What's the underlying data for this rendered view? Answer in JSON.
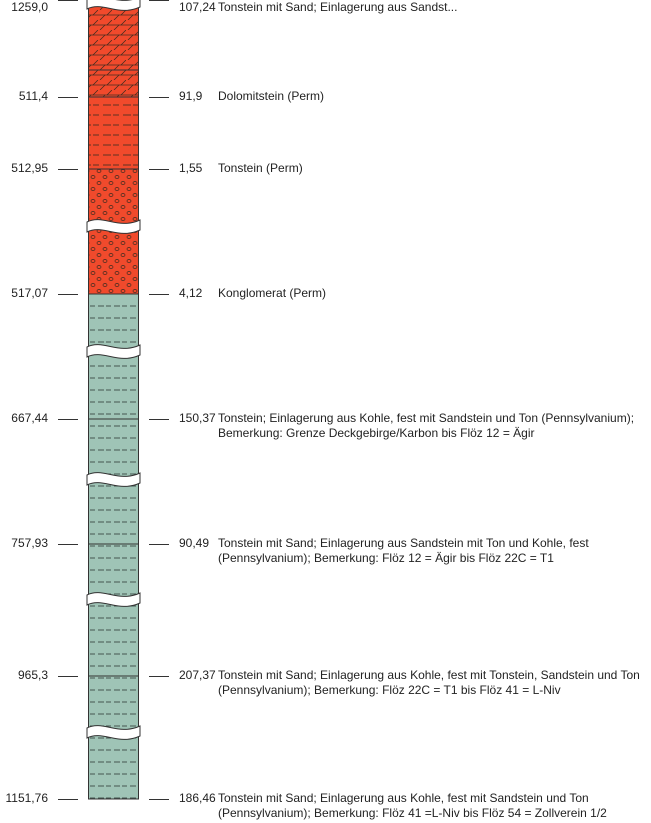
{
  "colors": {
    "perm": "#f04a2c",
    "karbon": "#9fc4b6",
    "pattern": "#3a2a1f",
    "outline": "#333333"
  },
  "layers": [
    {
      "id": "top",
      "depth": "",
      "thickness": "",
      "line1": "",
      "line2": "",
      "pattern": "dolomite-hatch",
      "fill": "perm"
    },
    {
      "id": "l1",
      "depth": "511,4",
      "thickness": "91,9",
      "line1": "Dolomitstein (Perm)",
      "line2": "",
      "pattern": "dolomite-hatch",
      "fill": "perm"
    },
    {
      "id": "l2",
      "depth": "512,95",
      "thickness": "1,55",
      "line1": "Tonstein (Perm)",
      "line2": "",
      "pattern": "dash",
      "fill": "perm"
    },
    {
      "id": "l3",
      "depth": "517,07",
      "thickness": "4,12",
      "line1": "Konglomerat (Perm)",
      "line2": "",
      "pattern": "pebbles",
      "fill": "perm"
    },
    {
      "id": "l4",
      "depth": "667,44",
      "thickness": "150,37",
      "line1": "Tonstein; Einlagerung aus Kohle, fest mit Sandstein und Ton (Pennsylvanium);",
      "line2": "Bemerkung: Grenze Deckgebirge/Karbon bis Flöz 12 = Ägir",
      "pattern": "dash",
      "fill": "karbon"
    },
    {
      "id": "l5",
      "depth": "757,93",
      "thickness": "90,49",
      "line1": "Tonstein mit Sand; Einlagerung aus Sandstein mit Ton und Kohle, fest",
      "line2": "(Pennsylvanium); Bemerkung: Flöz 12 = Ägir bis Flöz 22C = T1",
      "pattern": "dash",
      "fill": "karbon"
    },
    {
      "id": "l6",
      "depth": "965,3",
      "thickness": "207,37",
      "line1": "Tonstein mit Sand; Einlagerung aus Kohle, fest mit Tonstein, Sandstein und Ton",
      "line2": "(Pennsylvanium); Bemerkung: Flöz 22C = T1 bis Flöz 41 = L-Niv",
      "pattern": "dash",
      "fill": "karbon"
    },
    {
      "id": "l7",
      "depth": "1151,76",
      "thickness": "186,46",
      "line1": "Tonstein mit Sand; Einlagerung aus Kohle, fest mit Sandstein und Ton",
      "line2": "(Pennsylvanium); Bemerkung: Flöz 41 =L-Niv bis Flöz 54 = Zollverein 1/2",
      "pattern": "dash",
      "fill": "karbon"
    },
    {
      "id": "l8",
      "depth": "1259,0",
      "thickness": "107,24",
      "line1": "Tonstein mit Sand; Einlagerung aus Sandst...",
      "line2": "",
      "pattern": "dash",
      "fill": "karbon"
    }
  ]
}
